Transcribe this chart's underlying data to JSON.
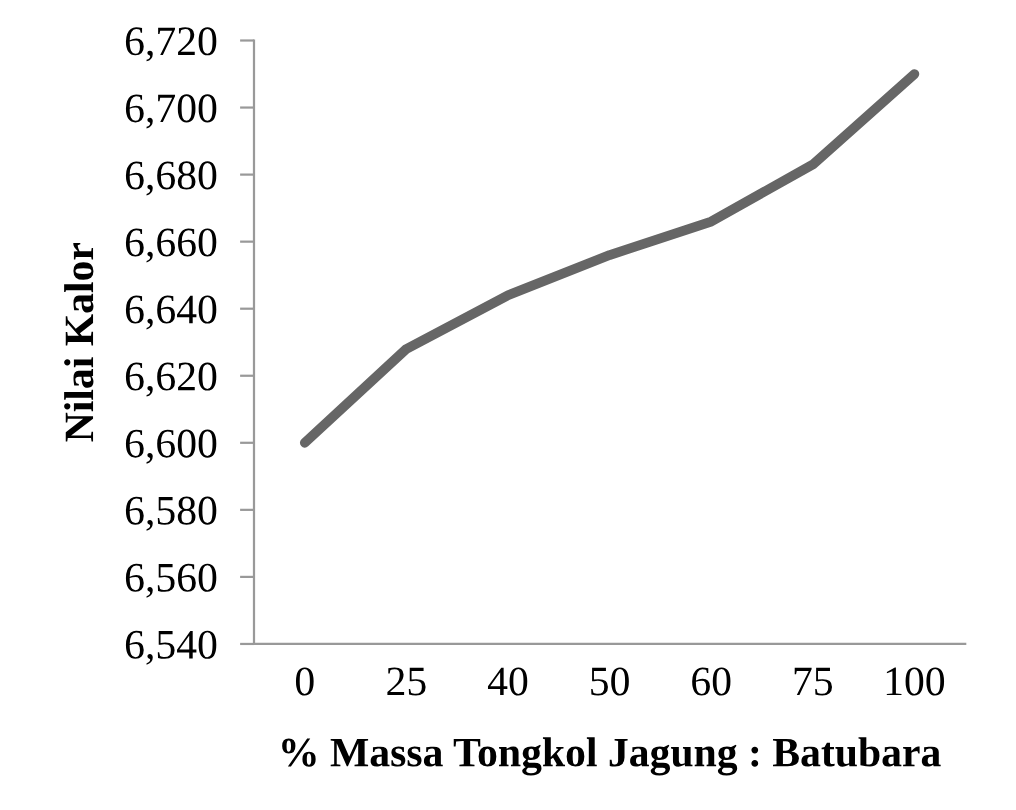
{
  "chart_data": {
    "type": "line",
    "xlabel": "% Massa Tongkol Jagung : Batubara",
    "ylabel": "Nilai Kalor",
    "categories": [
      "0",
      "25",
      "40",
      "50",
      "60",
      "75",
      "100"
    ],
    "series": [
      {
        "color": "#666666",
        "values": [
          6600,
          6628,
          6644,
          6656,
          6666,
          6683,
          6710
        ]
      }
    ],
    "ylim": [
      6540,
      6720
    ],
    "yticks": [
      {
        "value": 6540,
        "label": "6,540"
      },
      {
        "value": 6560,
        "label": "6,560"
      },
      {
        "value": 6580,
        "label": "6,580"
      },
      {
        "value": 6600,
        "label": "6,600"
      },
      {
        "value": 6620,
        "label": "6,620"
      },
      {
        "value": 6640,
        "label": "6,640"
      },
      {
        "value": 6660,
        "label": "6,660"
      },
      {
        "value": 6680,
        "label": "6,680"
      },
      {
        "value": 6700,
        "label": "6,700"
      },
      {
        "value": 6720,
        "label": "6,720"
      }
    ],
    "grid": false,
    "legend": false,
    "marker": "none",
    "line_style": "solid"
  }
}
